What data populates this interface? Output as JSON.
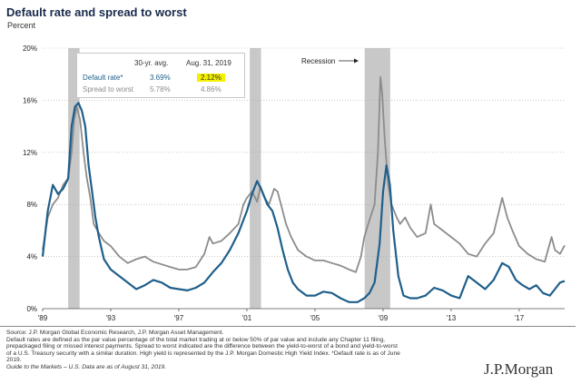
{
  "page": {
    "title": "Default rate and spread to worst",
    "unit_label": "Percent",
    "source_lines": [
      "Source: J.P. Morgan Global Economic Research, J.P. Morgan Asset Management.",
      "Default rates are defined as the par value percentage of the total market trading at or below 50% of par value and include any Chapter 11 filing,",
      "prepackaged filing or missed interest payments. Spread to worst indicated are the difference between the yield-to-worst of a bond and yield-to-worst",
      "of a U.S. Treasury security with a similar duration. High yield is represented by the J.P. Morgan Domestic High Yield Index. *Default rate is as of June",
      "2019."
    ],
    "guide_text": "Guide to the Markets – U.S. Data are as of August 31, 2019.",
    "brand": "J.P.Morgan"
  },
  "legend": {
    "col1": "30-yr. avg.",
    "col2": "Aug. 31, 2019",
    "rows": [
      {
        "label": "Default rate*",
        "avg": "3.69%",
        "current": "2.12%",
        "color": "#1f5f8b"
      },
      {
        "label": "Spread to worst",
        "avg": "5.78%",
        "current": "4.86%",
        "color": "#8c8c8c"
      }
    ],
    "highlight_color": "#f4f000"
  },
  "chart_data": {
    "type": "line",
    "title": "Default rate and spread to worst",
    "ylabel": "Percent",
    "ylim": [
      0,
      20
    ],
    "yticks": [
      "0%",
      "4%",
      "8%",
      "12%",
      "16%",
      "20%"
    ],
    "xlim": [
      1989.0,
      2019.67
    ],
    "xticks": [
      {
        "label": "'89",
        "x": 1989
      },
      {
        "label": "'93",
        "x": 1993
      },
      {
        "label": "'97",
        "x": 1997
      },
      {
        "label": "'01",
        "x": 2001
      },
      {
        "label": "'05",
        "x": 2005
      },
      {
        "label": "'09",
        "x": 2009
      },
      {
        "label": "'13",
        "x": 2013
      },
      {
        "label": "'17",
        "x": 2017
      }
    ],
    "grid": "horizontal dotted",
    "recessions": [
      [
        1990.5,
        1991.17
      ],
      [
        2001.17,
        2001.83
      ],
      [
        2007.92,
        2009.42
      ]
    ],
    "annotation": "Recession",
    "series": [
      {
        "name": "Spread to worst",
        "color": "#8c8c8c",
        "points": [
          [
            1989.0,
            4.5
          ],
          [
            1989.3,
            7.0
          ],
          [
            1989.6,
            8.0
          ],
          [
            1989.9,
            8.5
          ],
          [
            1990.2,
            9.5
          ],
          [
            1990.5,
            10.0
          ],
          [
            1990.7,
            12.0
          ],
          [
            1990.85,
            14.5
          ],
          [
            1991.0,
            15.5
          ],
          [
            1991.2,
            14.5
          ],
          [
            1991.4,
            12.0
          ],
          [
            1991.6,
            10.0
          ],
          [
            1991.8,
            8.5
          ],
          [
            1992.0,
            6.5
          ],
          [
            1992.3,
            5.8
          ],
          [
            1992.6,
            5.2
          ],
          [
            1993.0,
            4.8
          ],
          [
            1993.5,
            4.0
          ],
          [
            1994.0,
            3.5
          ],
          [
            1994.5,
            3.8
          ],
          [
            1995.0,
            4.0
          ],
          [
            1995.5,
            3.6
          ],
          [
            1996.0,
            3.4
          ],
          [
            1996.5,
            3.2
          ],
          [
            1997.0,
            3.0
          ],
          [
            1997.5,
            3.0
          ],
          [
            1998.0,
            3.2
          ],
          [
            1998.5,
            4.2
          ],
          [
            1998.8,
            5.5
          ],
          [
            1999.0,
            5.0
          ],
          [
            1999.5,
            5.2
          ],
          [
            2000.0,
            5.8
          ],
          [
            2000.5,
            6.5
          ],
          [
            2000.8,
            8.0
          ],
          [
            2001.0,
            8.5
          ],
          [
            2001.3,
            9.0
          ],
          [
            2001.6,
            8.2
          ],
          [
            2001.8,
            9.4
          ],
          [
            2002.0,
            8.6
          ],
          [
            2002.3,
            8.0
          ],
          [
            2002.6,
            9.2
          ],
          [
            2002.8,
            9.0
          ],
          [
            2003.0,
            8.0
          ],
          [
            2003.3,
            6.5
          ],
          [
            2003.6,
            5.5
          ],
          [
            2004.0,
            4.5
          ],
          [
            2004.5,
            4.0
          ],
          [
            2005.0,
            3.7
          ],
          [
            2005.5,
            3.7
          ],
          [
            2006.0,
            3.5
          ],
          [
            2006.5,
            3.3
          ],
          [
            2007.0,
            3.0
          ],
          [
            2007.4,
            2.8
          ],
          [
            2007.7,
            4.0
          ],
          [
            2007.9,
            5.5
          ],
          [
            2008.2,
            6.8
          ],
          [
            2008.5,
            8.0
          ],
          [
            2008.7,
            12.0
          ],
          [
            2008.85,
            17.8
          ],
          [
            2008.95,
            16.5
          ],
          [
            2009.1,
            13.0
          ],
          [
            2009.3,
            9.5
          ],
          [
            2009.5,
            8.0
          ],
          [
            2009.8,
            7.0
          ],
          [
            2010.0,
            6.5
          ],
          [
            2010.3,
            7.0
          ],
          [
            2010.6,
            6.2
          ],
          [
            2011.0,
            5.5
          ],
          [
            2011.5,
            5.8
          ],
          [
            2011.8,
            8.0
          ],
          [
            2012.0,
            6.5
          ],
          [
            2012.5,
            6.0
          ],
          [
            2013.0,
            5.5
          ],
          [
            2013.5,
            5.0
          ],
          [
            2014.0,
            4.2
          ],
          [
            2014.5,
            4.0
          ],
          [
            2015.0,
            5.0
          ],
          [
            2015.5,
            5.8
          ],
          [
            2016.0,
            8.5
          ],
          [
            2016.3,
            7.0
          ],
          [
            2016.6,
            6.0
          ],
          [
            2017.0,
            4.8
          ],
          [
            2017.5,
            4.2
          ],
          [
            2018.0,
            3.8
          ],
          [
            2018.5,
            3.6
          ],
          [
            2018.9,
            5.5
          ],
          [
            2019.1,
            4.5
          ],
          [
            2019.4,
            4.2
          ],
          [
            2019.67,
            4.86
          ]
        ]
      },
      {
        "name": "Default rate",
        "color": "#1f5f8b",
        "points": [
          [
            1989.0,
            4.0
          ],
          [
            1989.3,
            7.5
          ],
          [
            1989.6,
            9.5
          ],
          [
            1989.9,
            8.8
          ],
          [
            1990.2,
            9.2
          ],
          [
            1990.5,
            10.0
          ],
          [
            1990.7,
            14.0
          ],
          [
            1990.9,
            15.5
          ],
          [
            1991.1,
            15.8
          ],
          [
            1991.3,
            15.2
          ],
          [
            1991.5,
            14.0
          ],
          [
            1991.7,
            11.0
          ],
          [
            1991.9,
            9.0
          ],
          [
            1992.1,
            7.0
          ],
          [
            1992.3,
            5.5
          ],
          [
            1992.6,
            3.8
          ],
          [
            1993.0,
            3.0
          ],
          [
            1993.5,
            2.5
          ],
          [
            1994.0,
            2.0
          ],
          [
            1994.5,
            1.5
          ],
          [
            1995.0,
            1.8
          ],
          [
            1995.5,
            2.2
          ],
          [
            1996.0,
            2.0
          ],
          [
            1996.5,
            1.6
          ],
          [
            1997.0,
            1.5
          ],
          [
            1997.5,
            1.4
          ],
          [
            1998.0,
            1.6
          ],
          [
            1998.5,
            2.0
          ],
          [
            1999.0,
            2.8
          ],
          [
            1999.5,
            3.5
          ],
          [
            2000.0,
            4.5
          ],
          [
            2000.5,
            5.8
          ],
          [
            2001.0,
            7.5
          ],
          [
            2001.3,
            8.8
          ],
          [
            2001.6,
            9.8
          ],
          [
            2001.9,
            9.0
          ],
          [
            2002.2,
            8.0
          ],
          [
            2002.5,
            7.5
          ],
          [
            2002.8,
            6.2
          ],
          [
            2003.1,
            4.5
          ],
          [
            2003.4,
            3.0
          ],
          [
            2003.7,
            2.0
          ],
          [
            2004.0,
            1.5
          ],
          [
            2004.5,
            1.0
          ],
          [
            2005.0,
            1.0
          ],
          [
            2005.5,
            1.3
          ],
          [
            2006.0,
            1.2
          ],
          [
            2006.5,
            0.8
          ],
          [
            2007.0,
            0.5
          ],
          [
            2007.5,
            0.5
          ],
          [
            2007.9,
            0.8
          ],
          [
            2008.2,
            1.2
          ],
          [
            2008.5,
            2.0
          ],
          [
            2008.8,
            5.0
          ],
          [
            2009.0,
            9.0
          ],
          [
            2009.2,
            11.0
          ],
          [
            2009.4,
            9.5
          ],
          [
            2009.6,
            6.0
          ],
          [
            2009.9,
            2.5
          ],
          [
            2010.2,
            1.0
          ],
          [
            2010.6,
            0.8
          ],
          [
            2011.0,
            0.8
          ],
          [
            2011.5,
            1.0
          ],
          [
            2012.0,
            1.6
          ],
          [
            2012.5,
            1.4
          ],
          [
            2013.0,
            1.0
          ],
          [
            2013.5,
            0.8
          ],
          [
            2014.0,
            2.5
          ],
          [
            2014.5,
            2.0
          ],
          [
            2015.0,
            1.5
          ],
          [
            2015.5,
            2.2
          ],
          [
            2016.0,
            3.5
          ],
          [
            2016.4,
            3.2
          ],
          [
            2016.8,
            2.2
          ],
          [
            2017.2,
            1.8
          ],
          [
            2017.6,
            1.5
          ],
          [
            2018.0,
            1.8
          ],
          [
            2018.4,
            1.2
          ],
          [
            2018.8,
            1.0
          ],
          [
            2019.1,
            1.5
          ],
          [
            2019.4,
            2.0
          ],
          [
            2019.67,
            2.12
          ]
        ]
      }
    ]
  }
}
